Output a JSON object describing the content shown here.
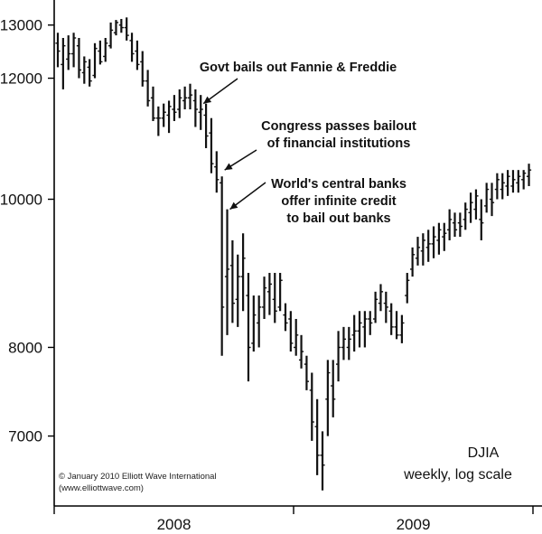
{
  "chart_data": {
    "type": "ohlc",
    "scale": "log",
    "ylim": [
      6300,
      13500
    ],
    "y_ticks": [
      {
        "value": 13000,
        "label": "13000"
      },
      {
        "value": 12000,
        "label": "12000"
      },
      {
        "value": 10000,
        "label": "10000"
      },
      {
        "value": 8000,
        "label": "8000"
      },
      {
        "value": 7000,
        "label": "7000"
      }
    ],
    "x_sections": [
      {
        "label": "2008",
        "weeks": 52
      },
      {
        "label": "2009",
        "weeks": 52
      }
    ],
    "weeks_shown": 90,
    "colors": {
      "bars": "#111111",
      "axis": "#000000",
      "background": "#ffffff"
    },
    "series": [
      {
        "values": [
          [
            12650,
            12850,
            12200,
            12500
          ],
          [
            12250,
            12750,
            11800,
            12600
          ],
          [
            12350,
            12800,
            12150,
            12450
          ],
          [
            12450,
            12850,
            12200,
            12750
          ],
          [
            12600,
            12750,
            12000,
            12150
          ],
          [
            12100,
            12400,
            11900,
            12300
          ],
          [
            12200,
            12350,
            11850,
            11950
          ],
          [
            12050,
            12650,
            12000,
            12550
          ],
          [
            12500,
            12700,
            12250,
            12300
          ],
          [
            12400,
            12750,
            12300,
            12650
          ],
          [
            12600,
            13050,
            12550,
            12900
          ],
          [
            12850,
            13100,
            12800,
            13050
          ],
          [
            13000,
            13120,
            12850,
            12950
          ],
          [
            12950,
            13150,
            12700,
            12800
          ],
          [
            12700,
            12850,
            12300,
            12450
          ],
          [
            12500,
            12700,
            12150,
            12250
          ],
          [
            12300,
            12500,
            11850,
            11950
          ],
          [
            11950,
            12150,
            11500,
            11600
          ],
          [
            11650,
            11850,
            11250,
            11300
          ],
          [
            11300,
            11500,
            11000,
            11300
          ],
          [
            11300,
            11550,
            11150,
            11400
          ],
          [
            11350,
            11600,
            11050,
            11500
          ],
          [
            11450,
            11700,
            11250,
            11400
          ],
          [
            11450,
            11800,
            11300,
            11650
          ],
          [
            11600,
            11850,
            11450,
            11650
          ],
          [
            11650,
            11900,
            11450,
            11700
          ],
          [
            11600,
            11800,
            11150,
            11450
          ],
          [
            11400,
            11700,
            11100,
            11450
          ],
          [
            11350,
            11550,
            10800,
            11000
          ],
          [
            11050,
            11300,
            10400,
            10550
          ],
          [
            10500,
            10750,
            10100,
            10300
          ],
          [
            10250,
            10350,
            7900,
            8500
          ],
          [
            8900,
            9850,
            8150,
            9000
          ],
          [
            9050,
            9400,
            8300,
            8550
          ],
          [
            8600,
            9200,
            8250,
            8900
          ],
          [
            8900,
            9500,
            8450,
            9150
          ],
          [
            8650,
            8950,
            7600,
            8000
          ],
          [
            8050,
            8650,
            7950,
            8400
          ],
          [
            8300,
            8650,
            8000,
            8500
          ],
          [
            8500,
            8900,
            8350,
            8750
          ],
          [
            8700,
            8950,
            8400,
            8800
          ],
          [
            8600,
            8950,
            8300,
            8450
          ],
          [
            8500,
            8950,
            8450,
            8850
          ],
          [
            8400,
            8550,
            8200,
            8300
          ],
          [
            8350,
            8450,
            7950,
            8050
          ],
          [
            8000,
            8350,
            7900,
            8150
          ],
          [
            7850,
            8150,
            7750,
            7950
          ],
          [
            7800,
            7900,
            7500,
            7600
          ],
          [
            7500,
            7700,
            6950,
            7150
          ],
          [
            7100,
            7400,
            6600,
            6800
          ],
          [
            6800,
            7050,
            6450,
            6700
          ],
          [
            7400,
            7850,
            7000,
            7700
          ],
          [
            7550,
            7850,
            7200,
            7400
          ],
          [
            7800,
            8200,
            7600,
            8000
          ],
          [
            8000,
            8250,
            7850,
            8100
          ],
          [
            8000,
            8250,
            7850,
            8100
          ],
          [
            8150,
            8400,
            7950,
            8200
          ],
          [
            8200,
            8450,
            8000,
            8300
          ],
          [
            8250,
            8450,
            8000,
            8350
          ],
          [
            8350,
            8450,
            8150,
            8300
          ],
          [
            8350,
            8700,
            8300,
            8600
          ],
          [
            8550,
            8800,
            8450,
            8700
          ],
          [
            8550,
            8700,
            8300,
            8500
          ],
          [
            8450,
            8550,
            8150,
            8250
          ],
          [
            8250,
            8450,
            8100,
            8150
          ],
          [
            8150,
            8400,
            8050,
            8300
          ],
          [
            8650,
            8950,
            8550,
            8850
          ],
          [
            9000,
            9300,
            8900,
            9200
          ],
          [
            9150,
            9450,
            9050,
            9300
          ],
          [
            9250,
            9500,
            9050,
            9400
          ],
          [
            9300,
            9550,
            9100,
            9350
          ],
          [
            9350,
            9600,
            9150,
            9450
          ],
          [
            9400,
            9650,
            9200,
            9550
          ],
          [
            9450,
            9650,
            9250,
            9500
          ],
          [
            9550,
            9850,
            9400,
            9700
          ],
          [
            9650,
            9800,
            9450,
            9550
          ],
          [
            9650,
            9800,
            9450,
            9600
          ],
          [
            9700,
            9950,
            9550,
            9850
          ],
          [
            9800,
            10100,
            9650,
            9950
          ],
          [
            9850,
            10150,
            9700,
            10050
          ],
          [
            9700,
            10000,
            9400,
            9650
          ],
          [
            9900,
            10250,
            9800,
            10150
          ],
          [
            10000,
            10250,
            9750,
            9950
          ],
          [
            10150,
            10400,
            10000,
            10300
          ],
          [
            10150,
            10400,
            10000,
            10250
          ],
          [
            10200,
            10450,
            10050,
            10350
          ],
          [
            10200,
            10450,
            10100,
            10300
          ],
          [
            10250,
            10450,
            10100,
            10350
          ],
          [
            10300,
            10450,
            10150,
            10400
          ],
          [
            10350,
            10550,
            10200,
            10450
          ]
        ]
      }
    ],
    "annotations": [
      {
        "lines": [
          "Govt bails out Fannie & Freddie"
        ],
        "week": 27,
        "value": 11550
      },
      {
        "lines": [
          "Congress passes bailout",
          "of financial institutions"
        ],
        "week": 31,
        "value": 10450
      },
      {
        "lines": [
          "World's central banks",
          "offer infinite credit",
          "to bail out banks"
        ],
        "week": 32,
        "value": 9850
      }
    ],
    "legend": {
      "line1": "DJIA",
      "line2": "weekly, log scale"
    },
    "credit": {
      "line1": "© January 2010 Elliott Wave International",
      "line2": "(www.elliottwave.com)"
    }
  }
}
